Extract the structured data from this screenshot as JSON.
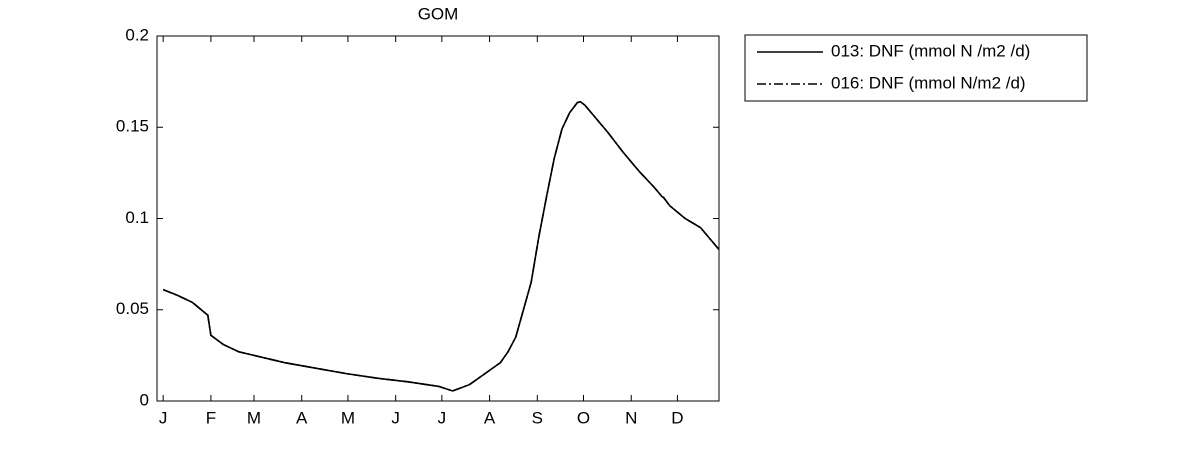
{
  "chart_data": {
    "type": "line",
    "title": "GOM",
    "x": [
      1,
      10,
      20,
      30,
      32,
      40,
      50,
      60,
      80,
      100,
      120,
      140,
      160,
      180,
      189,
      200,
      210,
      220,
      225,
      230,
      235,
      240,
      245,
      250,
      255,
      260,
      265,
      270,
      272,
      275,
      280,
      290,
      300,
      310,
      320,
      325,
      326,
      330,
      340,
      350,
      355,
      362
    ],
    "series": [
      {
        "name": "013: DNF (mmol N /m2 /d)",
        "color": "#000000",
        "dash": "solid",
        "values": [
          0.061,
          0.058,
          0.054,
          0.047,
          0.036,
          0.031,
          0.027,
          0.025,
          0.021,
          0.018,
          0.015,
          0.0125,
          0.0105,
          0.008,
          0.0055,
          0.009,
          0.015,
          0.021,
          0.027,
          0.035,
          0.05,
          0.065,
          0.09,
          0.112,
          0.133,
          0.149,
          0.158,
          0.1635,
          0.164,
          0.162,
          0.157,
          0.147,
          0.136,
          0.126,
          0.117,
          0.112,
          0.1115,
          0.107,
          0.1,
          0.095,
          0.09,
          0.083
        ]
      },
      {
        "name": "016: DNF (mmol N/m2 /d)",
        "color": "#000000",
        "dash": "dashdot",
        "values": [
          0.061,
          0.058,
          0.054,
          0.047,
          0.036,
          0.031,
          0.027,
          0.025,
          0.021,
          0.018,
          0.015,
          0.0125,
          0.0105,
          0.008,
          0.0055,
          0.009,
          0.015,
          0.021,
          0.027,
          0.035,
          0.05,
          0.065,
          0.09,
          0.112,
          0.133,
          0.149,
          0.158,
          0.1635,
          0.164,
          0.162,
          0.157,
          0.147,
          0.136,
          0.126,
          0.117,
          0.112,
          0.1115,
          0.107,
          0.1,
          0.095,
          0.09,
          0.083
        ]
      }
    ],
    "xlim": [
      -3,
      362
    ],
    "xticks": [
      {
        "value": 1,
        "label": "J"
      },
      {
        "value": 32,
        "label": "F"
      },
      {
        "value": 60,
        "label": "M"
      },
      {
        "value": 91,
        "label": "A"
      },
      {
        "value": 121,
        "label": "M"
      },
      {
        "value": 152,
        "label": "J"
      },
      {
        "value": 182,
        "label": "J"
      },
      {
        "value": 213,
        "label": "A"
      },
      {
        "value": 244,
        "label": "S"
      },
      {
        "value": 274,
        "label": "O"
      },
      {
        "value": 305,
        "label": "N"
      },
      {
        "value": 335,
        "label": "D"
      }
    ],
    "ylim": [
      0,
      0.2
    ],
    "yticks": [
      0,
      0.05,
      0.1,
      0.15,
      0.2
    ],
    "grid": false,
    "legend": "outside-top-right"
  }
}
